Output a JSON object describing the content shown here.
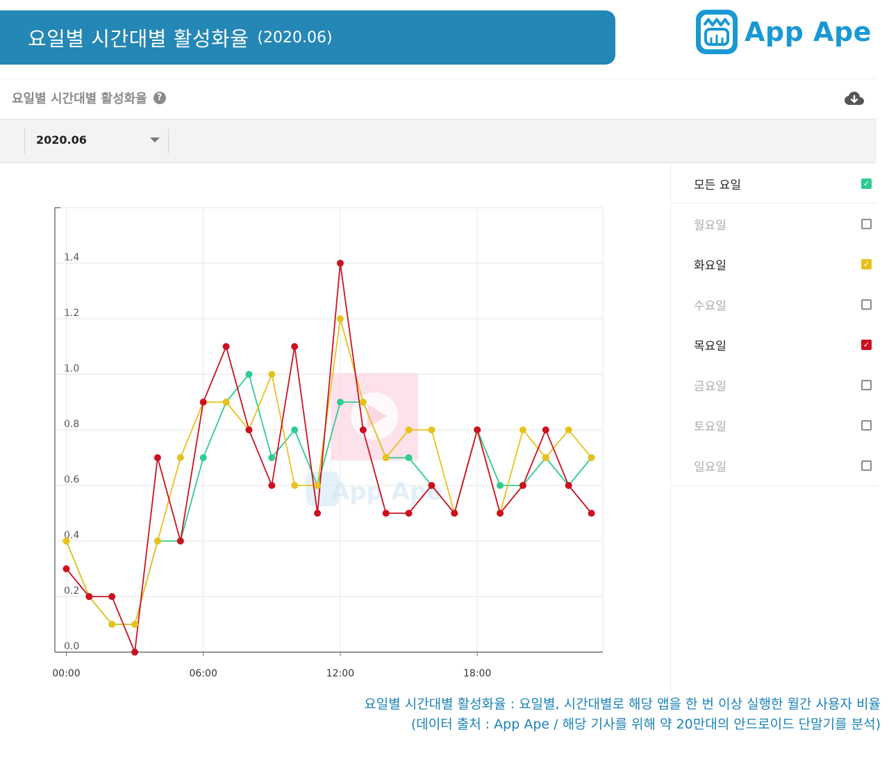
{
  "header": {
    "title": "요일별 시간대별 활성화율",
    "period": "(2020.06)"
  },
  "logo": {
    "text": "App Ape",
    "icon": "ape-face-icon"
  },
  "panel": {
    "title": "요일별 시간대별 활성화율",
    "help_icon": "help-icon",
    "download_icon": "cloud-download-icon"
  },
  "filter": {
    "month": "2020.06"
  },
  "legend": {
    "items": [
      {
        "label": "모든 요일",
        "checked": true,
        "color": "#2ecc8f"
      },
      {
        "label": "월요일",
        "checked": false,
        "color": "#8a8a8a"
      },
      {
        "label": "화요일",
        "checked": true,
        "color": "#e8c21c"
      },
      {
        "label": "수요일",
        "checked": false,
        "color": "#8a8a8a"
      },
      {
        "label": "목요일",
        "checked": true,
        "color": "#cc1020"
      },
      {
        "label": "금요일",
        "checked": false,
        "color": "#8a8a8a"
      },
      {
        "label": "토요일",
        "checked": false,
        "color": "#8a8a8a"
      },
      {
        "label": "일요일",
        "checked": false,
        "color": "#8a8a8a"
      }
    ]
  },
  "chart_data": {
    "type": "line",
    "x": [
      0,
      1,
      2,
      3,
      4,
      5,
      6,
      7,
      8,
      9,
      10,
      11,
      12,
      13,
      14,
      15,
      16,
      17,
      18,
      19,
      20,
      21,
      22,
      23
    ],
    "xticks": [
      0,
      6,
      12,
      18
    ],
    "xtick_labels": [
      "00:00",
      "06:00",
      "12:00",
      "18:00"
    ],
    "xlim": [
      -0.5,
      23.5
    ],
    "yticks": [
      0.0,
      0.2,
      0.4,
      0.6,
      0.8,
      1.0,
      1.2,
      1.4
    ],
    "ytick_labels": [
      "0.0",
      "0.2",
      "0.4",
      "0.6",
      "0.8",
      "1.0",
      "1.2",
      "1.4"
    ],
    "ylim": [
      0,
      1.6
    ],
    "grid": true,
    "watermark": "App Ape",
    "series": [
      {
        "name": "모든 요일",
        "color": "#2ecc8f",
        "values": [
          0.4,
          0.2,
          0.1,
          0.1,
          0.4,
          0.4,
          0.7,
          0.9,
          1.0,
          0.7,
          0.8,
          0.6,
          0.9,
          0.9,
          0.7,
          0.7,
          0.6,
          0.5,
          0.8,
          0.6,
          0.6,
          0.7,
          0.6,
          0.7
        ]
      },
      {
        "name": "화요일",
        "color": "#e8c21c",
        "values": [
          0.4,
          0.2,
          0.1,
          0.1,
          0.4,
          0.7,
          0.9,
          0.9,
          0.8,
          1.0,
          0.6,
          0.6,
          1.2,
          0.9,
          0.7,
          0.8,
          0.8,
          0.5,
          0.8,
          0.5,
          0.8,
          0.7,
          0.8,
          0.7
        ]
      },
      {
        "name": "목요일",
        "color": "#cc1020",
        "values": [
          0.3,
          0.2,
          0.2,
          0.0,
          0.7,
          0.4,
          0.9,
          1.1,
          0.8,
          0.6,
          1.1,
          0.5,
          1.4,
          0.8,
          0.5,
          0.5,
          0.6,
          0.5,
          0.8,
          0.5,
          0.6,
          0.8,
          0.6,
          0.5
        ]
      }
    ]
  },
  "caption": {
    "line1": "요일별 시간대별 활성화율 : 요일별, 시간대별로 해당 앱을 한 번 이상 실행한 월간 사용자 비율",
    "line2": "(데이터 출처 : App Ape / 해당 기사를 위해 약 20만대의 안드로이드 단말기를 분석)"
  }
}
